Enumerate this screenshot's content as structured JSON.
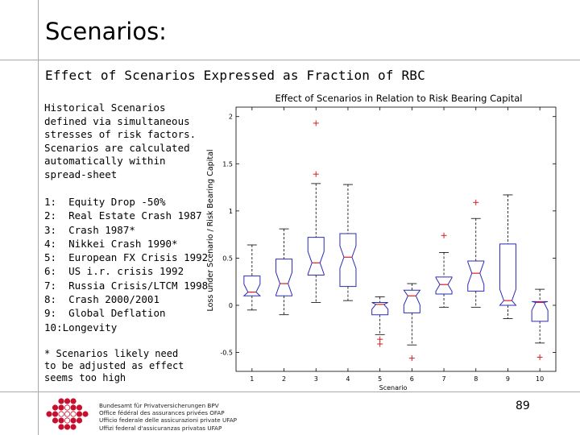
{
  "page": {
    "title": "Scenarios:",
    "subtitle": "Effect of Scenarios Expressed as Fraction of RBC",
    "intro": "Historical Scenarios defined via simultaneous stresses of risk factors. Scenarios are calculated automatically within spread-sheet",
    "scenarios": [
      "1:  Equity Drop -50%",
      "2:  Real Estate Crash 1987",
      "3:  Crash 1987*",
      "4:  Nikkei Crash 1990*",
      "5:  European FX Crisis 1992",
      "6:  US i.r. crisis 1992",
      "7:  Russia Crisis/LTCM 1998",
      "8:  Crash 2000/2001",
      "9:  Global Deflation",
      "10:Longevity"
    ],
    "footnote": "* Scenarios likely need to be adjusted as effect seems too high",
    "page_number": "89"
  },
  "footer": {
    "org_lines": [
      "Bundesamt für Privatversicherungen BPV",
      "Office fédéral des assurances privées OFAP",
      "Ufficio federale delle assicurazioni private UFAP",
      "Uffizi federal d'assicuranzas privatas UFAP"
    ]
  },
  "chart_data": {
    "type": "boxplot",
    "title": "Effect of Scenarios in Relation to Risk Bearing Capital",
    "xlabel": "Scenario",
    "ylabel": "Loss under Scenario / Risk Bearing Capital",
    "xlim": [
      0.5,
      10.5
    ],
    "ylim": [
      -0.7,
      2.1
    ],
    "yticks": [
      -0.5,
      0,
      0.5,
      1,
      1.5,
      2
    ],
    "ytick_labels": [
      "-0.5",
      "0",
      "0.5",
      "1",
      "1.5",
      "2"
    ],
    "categories": [
      "1",
      "2",
      "3",
      "4",
      "5",
      "6",
      "7",
      "8",
      "9",
      "10"
    ],
    "notched": true,
    "colors": {
      "box": "#2b2bb8",
      "median": "#d42020",
      "whisker": "#000000",
      "outlier": "#d42020",
      "axis": "#000000"
    },
    "boxes": [
      {
        "x": 1,
        "whisker_low": -0.05,
        "q1": 0.1,
        "median": 0.14,
        "q3": 0.31,
        "whisker_high": 0.64,
        "outliers": []
      },
      {
        "x": 2,
        "whisker_low": -0.1,
        "q1": 0.1,
        "median": 0.23,
        "q3": 0.49,
        "whisker_high": 0.81,
        "outliers": []
      },
      {
        "x": 3,
        "whisker_low": 0.03,
        "q1": 0.32,
        "median": 0.45,
        "q3": 0.72,
        "whisker_high": 1.29,
        "outliers": [
          1.39,
          1.93
        ]
      },
      {
        "x": 4,
        "whisker_low": 0.05,
        "q1": 0.2,
        "median": 0.51,
        "q3": 0.76,
        "whisker_high": 1.28,
        "outliers": []
      },
      {
        "x": 5,
        "whisker_low": -0.31,
        "q1": -0.1,
        "median": 0.01,
        "q3": 0.03,
        "whisker_high": 0.09,
        "outliers": [
          -0.36,
          -0.41
        ]
      },
      {
        "x": 6,
        "whisker_low": -0.42,
        "q1": -0.08,
        "median": 0.1,
        "q3": 0.16,
        "whisker_high": 0.23,
        "outliers": [
          -0.56
        ]
      },
      {
        "x": 7,
        "whisker_low": -0.02,
        "q1": 0.12,
        "median": 0.22,
        "q3": 0.3,
        "whisker_high": 0.56,
        "outliers": [
          0.74
        ]
      },
      {
        "x": 8,
        "whisker_low": -0.02,
        "q1": 0.15,
        "median": 0.34,
        "q3": 0.47,
        "whisker_high": 0.92,
        "outliers": [
          1.09
        ]
      },
      {
        "x": 9,
        "whisker_low": -0.14,
        "q1": 0.0,
        "median": 0.05,
        "q3": 0.65,
        "whisker_high": 1.17,
        "outliers": []
      },
      {
        "x": 10,
        "whisker_low": -0.4,
        "q1": -0.17,
        "median": 0.03,
        "q3": 0.04,
        "whisker_high": 0.17,
        "outliers": [
          -0.55
        ]
      }
    ]
  }
}
